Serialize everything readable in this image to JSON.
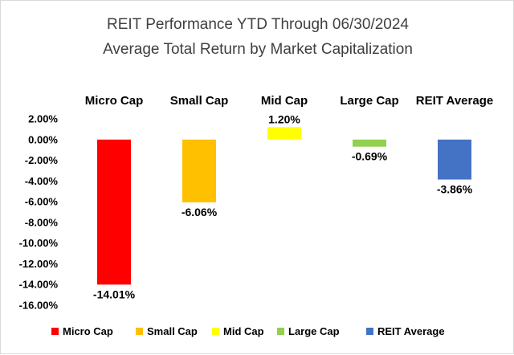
{
  "chart_data": {
    "type": "bar",
    "title": "REIT Performance YTD Through 06/30/2024",
    "subtitle": "Average Total Return by Market Capitalization",
    "categories": [
      "Micro Cap",
      "Small Cap",
      "Mid Cap",
      "Large Cap",
      "REIT Average"
    ],
    "values": [
      -14.01,
      -6.06,
      1.2,
      -0.69,
      -3.86
    ],
    "value_labels": [
      "-14.01%",
      "-6.06%",
      "1.20%",
      "-0.69%",
      "-3.86%"
    ],
    "colors": [
      "#ff0000",
      "#ffc000",
      "#ffff00",
      "#92d050",
      "#4472c4"
    ],
    "yticks": [
      2,
      0,
      -2,
      -4,
      -6,
      -8,
      -10,
      -12,
      -14,
      -16
    ],
    "ytick_labels": [
      "2.00%",
      "0.00%",
      "-2.00%",
      "-4.00%",
      "-6.00%",
      "-8.00%",
      "-10.00%",
      "-12.00%",
      "-14.00%",
      "-16.00%"
    ],
    "ylim": [
      -16,
      2
    ],
    "xlabel": "",
    "ylabel": "",
    "grid": false,
    "legend": {
      "position": "bottom",
      "entries": [
        "Micro Cap",
        "Small Cap",
        "Mid Cap",
        "Large Cap",
        "REIT Average"
      ]
    }
  }
}
